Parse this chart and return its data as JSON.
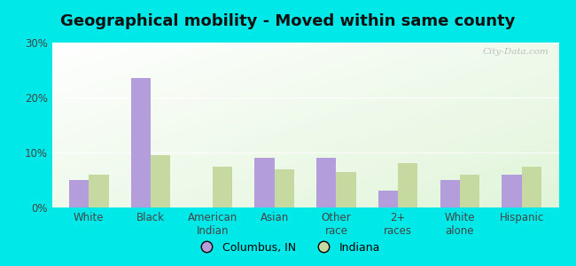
{
  "title": "Geographical mobility - Moved within same county",
  "categories": [
    "White",
    "Black",
    "American\nIndian",
    "Asian",
    "Other\nrace",
    "2+\nraces",
    "White\nalone",
    "Hispanic"
  ],
  "columbus_values": [
    5.0,
    23.5,
    0.0,
    9.0,
    9.0,
    3.0,
    5.0,
    6.0
  ],
  "indiana_values": [
    6.0,
    9.5,
    7.5,
    7.0,
    6.5,
    8.0,
    6.0,
    7.5
  ],
  "columbus_color": "#b39ddb",
  "indiana_color": "#c5d9a0",
  "background_color": "#00e8e8",
  "ylim": [
    0,
    30
  ],
  "yticks": [
    0,
    10,
    20,
    30
  ],
  "ytick_labels": [
    "0%",
    "10%",
    "20%",
    "30%"
  ],
  "bar_width": 0.32,
  "legend_labels": [
    "Columbus, IN",
    "Indiana"
  ],
  "watermark": "City-Data.com",
  "title_fontsize": 13,
  "tick_fontsize": 8.5
}
